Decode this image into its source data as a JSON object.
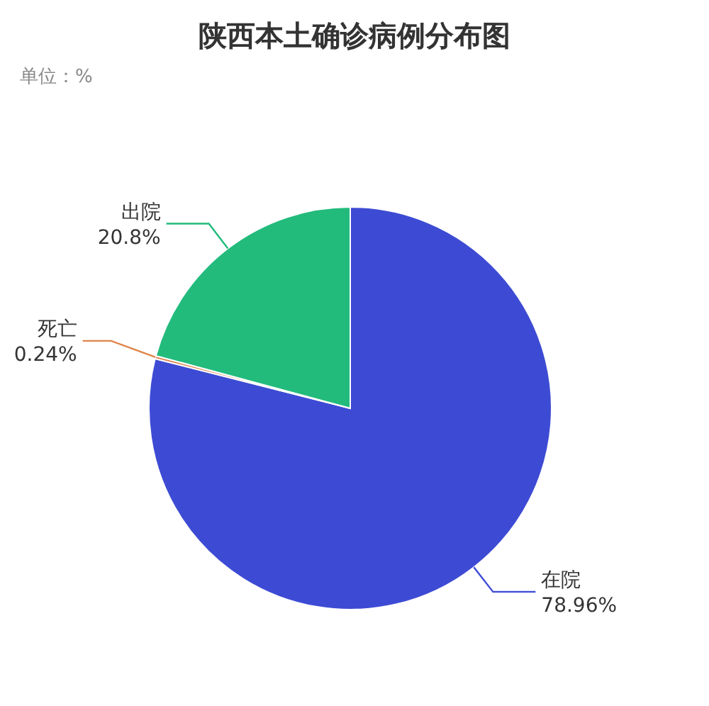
{
  "chart_data": {
    "type": "pie",
    "title": "陕西本土确诊病例分布图",
    "annotations": [
      "单位：%"
    ],
    "categories": [
      "在院",
      "死亡",
      "出院"
    ],
    "values": [
      78.96,
      0.24,
      20.8
    ],
    "value_labels": [
      "78.96%",
      "0.24%",
      "20.8%"
    ],
    "colors": [
      "#3d4bd4",
      "#e0834a",
      "#22bb7c"
    ]
  }
}
